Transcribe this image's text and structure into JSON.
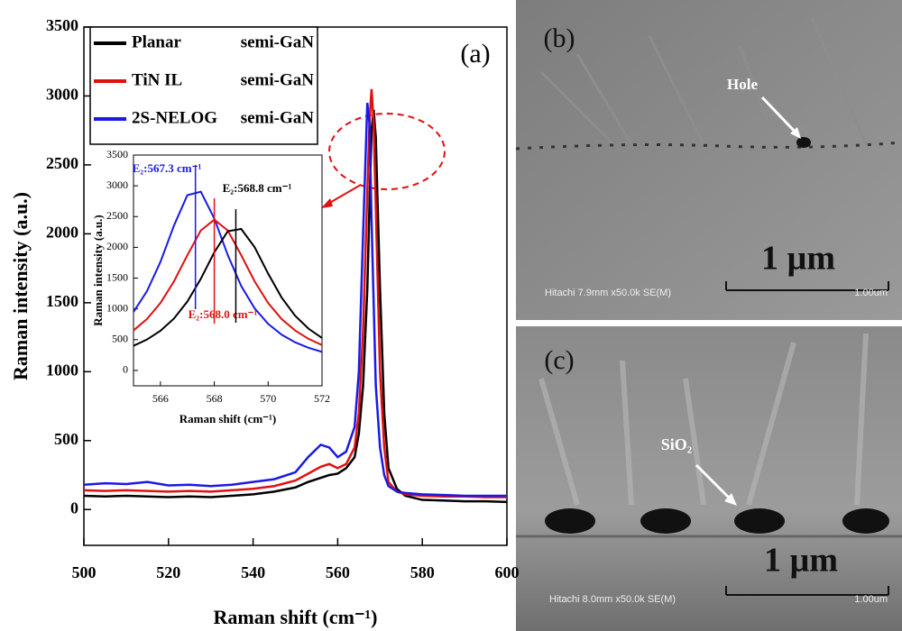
{
  "chart_data": [
    {
      "type": "line",
      "panel_label": "(a)",
      "x_label": "Raman shift (cm⁻¹)",
      "y_label": "Raman intensity (a.u.)",
      "xlim": [
        500,
        600
      ],
      "ylim": [
        -260,
        3500
      ],
      "xticks": [
        500,
        520,
        540,
        560,
        580,
        600
      ],
      "yticks": [
        0,
        500,
        1000,
        1500,
        2000,
        2500,
        3000,
        3500
      ],
      "grid": false,
      "x": [
        500,
        505,
        510,
        515,
        520,
        525,
        530,
        535,
        540,
        545,
        550,
        553,
        556,
        558,
        560,
        562,
        564,
        565,
        566,
        567,
        567.5,
        568,
        568.5,
        569,
        570,
        571,
        572,
        574,
        576,
        580,
        585,
        590,
        595,
        600
      ],
      "series": [
        {
          "name": "Planar",
          "substrate": "semi-GaN",
          "color": "#000000",
          "values": [
            100,
            95,
            100,
            95,
            90,
            95,
            90,
            100,
            110,
            130,
            160,
            200,
            230,
            250,
            260,
            300,
            380,
            550,
            900,
            1600,
            2200,
            2750,
            2900,
            2700,
            1600,
            700,
            300,
            150,
            100,
            70,
            65,
            60,
            60,
            55
          ]
        },
        {
          "name": "TiN IL",
          "substrate": "semi-GaN",
          "color": "#e01010",
          "values": [
            140,
            135,
            140,
            135,
            130,
            135,
            130,
            140,
            150,
            170,
            210,
            260,
            310,
            330,
            300,
            330,
            450,
            700,
            1300,
            2300,
            2800,
            3050,
            2800,
            2200,
            1000,
            450,
            200,
            130,
            110,
            100,
            95,
            95,
            90,
            90
          ]
        },
        {
          "name": "2S-NELOG",
          "substrate": "semi-GaN",
          "color": "#1a1ae6",
          "values": [
            180,
            190,
            185,
            200,
            175,
            180,
            170,
            180,
            200,
            220,
            270,
            380,
            470,
            450,
            380,
            420,
            600,
            1000,
            2000,
            2950,
            2800,
            2100,
            1500,
            900,
            450,
            250,
            170,
            130,
            120,
            110,
            105,
            100,
            100,
            100
          ]
        }
      ]
    },
    {
      "type": "line",
      "x_label": "Raman shift (cm⁻¹)",
      "y_label": "Raman intensity (a.u.)",
      "xlim": [
        565,
        572
      ],
      "ylim": [
        -250,
        3500
      ],
      "xticks": [
        566,
        568,
        570,
        572
      ],
      "yticks": [
        0,
        500,
        1000,
        1500,
        2000,
        2500,
        3000,
        3500
      ],
      "grid": false,
      "x": [
        565,
        565.5,
        566,
        566.5,
        567,
        567.5,
        568,
        568.5,
        569,
        569.5,
        570,
        570.5,
        571,
        571.5,
        572
      ],
      "series": [
        {
          "color": "#1a1ae6",
          "values": [
            950,
            1288,
            1763,
            2351,
            2848,
            2904,
            2469,
            1875,
            1372,
            1008,
            756,
            581,
            457,
            368,
            301
          ]
        },
        {
          "color": "#e01010",
          "values": [
            650,
            836,
            1096,
            1446,
            1872,
            2275,
            2450,
            2275,
            1872,
            1446,
            1096,
            836,
            650,
            513,
            412
          ]
        },
        {
          "color": "#000000",
          "values": [
            400,
            502,
            644,
            842,
            1119,
            1489,
            1919,
            2262,
            2299,
            2002,
            1573,
            1185,
            890,
            678,
            527
          ]
        }
      ],
      "markers": [
        {
          "x": 567.3,
          "label": "E₂:567.3 cm⁻¹",
          "color": "#1a1ae6"
        },
        {
          "x": 568.0,
          "label": "E₂:568.0 cm⁻¹",
          "color": "#e01010"
        },
        {
          "x": 568.8,
          "label": "E₂:568.8 cm⁻¹",
          "color": "#000000"
        }
      ]
    }
  ],
  "panels": [
    {
      "label": "(b)",
      "feature": "Hole",
      "scale": "1 µm",
      "info": "Hitachi 7.9mm x50.0k SE(M)",
      "scale_text": "1.00um"
    },
    {
      "label": "(c)",
      "feature": "SiO₂",
      "scale": "1 µm",
      "info": "Hitachi 8.0mm x50.0k SE(M)",
      "scale_text": "1.00um"
    }
  ]
}
